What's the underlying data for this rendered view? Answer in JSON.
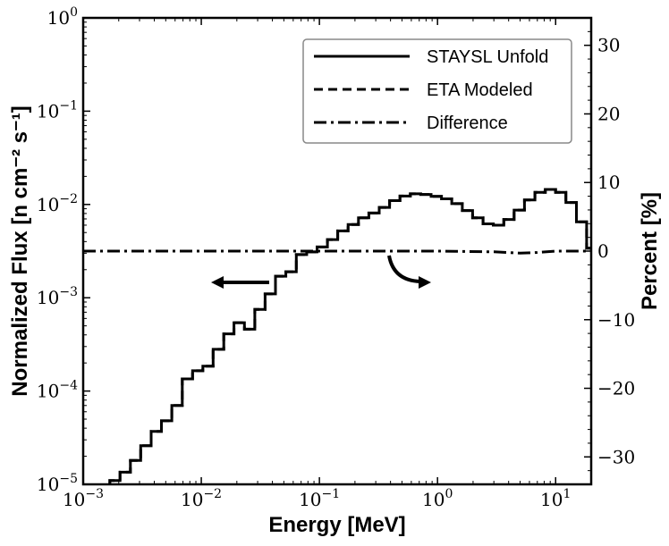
{
  "chart_data": {
    "type": "line",
    "x_scale": "log",
    "y_scale": "log",
    "xlim": [
      0.001,
      20
    ],
    "ylim": [
      1e-05,
      1
    ],
    "y2lim": [
      -34,
      34
    ],
    "xlabel": "Energy [MeV]",
    "ylabel": "Normalized Flux [n cm⁻² s⁻¹]",
    "y2label": "Percent [%]",
    "x_ticks": [
      {
        "value": 0.001,
        "base": "10",
        "exp": "−3"
      },
      {
        "value": 0.01,
        "base": "10",
        "exp": "−2"
      },
      {
        "value": 0.1,
        "base": "10",
        "exp": "−1"
      },
      {
        "value": 1,
        "base": "10",
        "exp": "0"
      },
      {
        "value": 10,
        "base": "10",
        "exp": "1"
      }
    ],
    "y_ticks": [
      {
        "value": 1e-05,
        "base": "10",
        "exp": "−5"
      },
      {
        "value": 0.0001,
        "base": "10",
        "exp": "−4"
      },
      {
        "value": 0.001,
        "base": "10",
        "exp": "−3"
      },
      {
        "value": 0.01,
        "base": "10",
        "exp": "−2"
      },
      {
        "value": 0.1,
        "base": "10",
        "exp": "−1"
      },
      {
        "value": 1,
        "base": "10",
        "exp": "0"
      }
    ],
    "y2_ticks": [
      {
        "value": 30,
        "label": "30"
      },
      {
        "value": 20,
        "label": "20"
      },
      {
        "value": 10,
        "label": "10"
      },
      {
        "value": 0,
        "label": "0"
      },
      {
        "value": -10,
        "label": "−10"
      },
      {
        "value": -20,
        "label": "−20"
      },
      {
        "value": -30,
        "label": "−30"
      }
    ],
    "legend": {
      "position": "top-right",
      "entries": [
        {
          "label": "STAYSL Unfold",
          "dash": "solid"
        },
        {
          "label": "ETA Modeled",
          "dash": "dashed"
        },
        {
          "label": "Difference",
          "dash": "dashdot"
        }
      ]
    },
    "series": [
      {
        "name": "STAYSL Unfold",
        "axis": "left",
        "style": "step",
        "dash": "solid",
        "x": [
          0.00137,
          0.00168,
          0.00205,
          0.00251,
          0.00307,
          0.00376,
          0.0046,
          0.00563,
          0.0069,
          0.00844,
          0.0103,
          0.0126,
          0.0155,
          0.0189,
          0.0232,
          0.0284,
          0.0347,
          0.0425,
          0.052,
          0.0637,
          0.078,
          0.0955,
          0.117,
          0.143,
          0.175,
          0.214,
          0.262,
          0.321,
          0.393,
          0.481,
          0.589,
          0.721,
          0.882,
          1.08,
          1.32,
          1.62,
          1.98,
          2.43,
          2.97,
          3.64,
          4.45,
          5.45,
          6.68,
          8.17,
          10.0,
          12.2,
          15.0,
          18.3,
          20.0
        ],
        "y": [
          9.1e-06,
          1.1e-05,
          1.35e-05,
          1.8e-05,
          2.6e-05,
          3.7e-05,
          4.8e-05,
          7e-05,
          0.000135,
          0.000165,
          0.000185,
          0.00028,
          0.00041,
          0.00054,
          0.00046,
          0.00075,
          0.0011,
          0.0017,
          0.0019,
          0.0029,
          0.0031,
          0.0035,
          0.0042,
          0.0052,
          0.0061,
          0.0072,
          0.0081,
          0.0093,
          0.011,
          0.0123,
          0.013,
          0.0128,
          0.0122,
          0.0115,
          0.0102,
          0.0086,
          0.0072,
          0.0062,
          0.006,
          0.0069,
          0.0087,
          0.0112,
          0.0135,
          0.0145,
          0.0135,
          0.0105,
          0.0065,
          0.0034,
          0.0034
        ]
      },
      {
        "name": "ETA Modeled",
        "axis": "left",
        "style": "step",
        "dash": "dashed",
        "x": [
          0.00137,
          0.00168,
          0.00205,
          0.00251,
          0.00307,
          0.00376,
          0.0046,
          0.00563,
          0.0069,
          0.00844,
          0.0103,
          0.0126,
          0.0155,
          0.0189,
          0.0232,
          0.0284,
          0.0347,
          0.0425,
          0.052,
          0.0637,
          0.078,
          0.0955,
          0.117,
          0.143,
          0.175,
          0.214,
          0.262,
          0.321,
          0.393,
          0.481,
          0.589,
          0.721,
          0.882,
          1.08,
          1.32,
          1.62,
          1.98,
          2.43,
          2.97,
          3.64,
          4.45,
          5.45,
          6.68,
          8.17,
          10.0,
          12.2,
          15.0,
          18.3,
          20.0
        ],
        "y": [
          9.1e-06,
          1.1e-05,
          1.35e-05,
          1.8e-05,
          2.6e-05,
          3.7e-05,
          4.8e-05,
          7e-05,
          0.000135,
          0.000165,
          0.000185,
          0.00028,
          0.00041,
          0.00054,
          0.00046,
          0.00075,
          0.0011,
          0.0017,
          0.0019,
          0.0029,
          0.0031,
          0.0035,
          0.0042,
          0.0052,
          0.0061,
          0.0072,
          0.0081,
          0.0093,
          0.011,
          0.0123,
          0.013,
          0.0128,
          0.0122,
          0.0115,
          0.0102,
          0.0086,
          0.0072,
          0.0062,
          0.006,
          0.0069,
          0.0087,
          0.0112,
          0.0135,
          0.0145,
          0.0135,
          0.0105,
          0.0065,
          0.0034,
          0.0034
        ]
      },
      {
        "name": "Difference",
        "axis": "right",
        "style": "line",
        "dash": "dashdot",
        "x": [
          0.001,
          0.01,
          0.1,
          1,
          3,
          5,
          7,
          10,
          15,
          20
        ],
        "y": [
          0,
          0,
          0,
          0,
          -0.1,
          -0.3,
          -0.2,
          0,
          0,
          0
        ]
      }
    ],
    "annotations": [
      {
        "type": "arrow-left",
        "meaning": "points to left axis"
      },
      {
        "type": "arrow-curved-right",
        "meaning": "points to right axis"
      }
    ]
  }
}
